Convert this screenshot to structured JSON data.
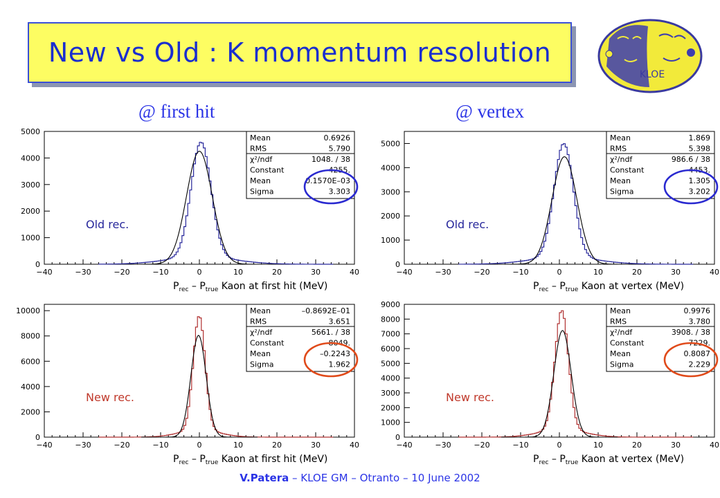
{
  "slide": {
    "title": "New vs Old : K momentum resolution",
    "col_left": "@ first hit",
    "col_right": "@ vertex",
    "footer_author": "V.Patera",
    "footer_rest": " – KLOE GM – Otranto – 10 June 2002",
    "logo_text": "KLOE",
    "colors": {
      "title_bg": "#fdfd62",
      "title_fg": "#1a2ecf",
      "old": "#27279b",
      "new": "#c0392b",
      "fit": "#000000"
    }
  },
  "chart_data": [
    {
      "type": "line",
      "label": "Old rec.",
      "label_color": "#27279b",
      "hist_color": "#27279b",
      "circle_color": "#2a2ad0",
      "xlabel_main": "P",
      "xlabel_sub1": "rec",
      "xlabel_mid": " – P",
      "xlabel_sub2": "true",
      "xlabel_tail": " Kaon at first hit (MeV)",
      "xlim": [
        -40,
        40
      ],
      "ylim": [
        0,
        5000
      ],
      "xticks": [
        "-40",
        "-30",
        "-20",
        "-10",
        "0",
        "10",
        "20",
        "30",
        "40"
      ],
      "yticks": [
        "0",
        "1000",
        "2000",
        "3000",
        "4000",
        "5000"
      ],
      "peak": 4600,
      "fit_mean": 0.000157,
      "fit_sigma": 3.303,
      "fit_constant": 4255,
      "hist_mean": 0.6926,
      "stats": [
        [
          "Mean",
          "0.6926"
        ],
        [
          "RMS",
          "5.790"
        ],
        [
          "χ²/ndf",
          "1048.  /  38"
        ],
        [
          "Constant",
          "4255."
        ],
        [
          "Mean",
          "0.1570E–03"
        ],
        [
          "Sigma",
          "3.303"
        ]
      ]
    },
    {
      "type": "line",
      "label": "Old rec.",
      "label_color": "#27279b",
      "hist_color": "#27279b",
      "circle_color": "#2a2ad0",
      "xlabel_main": "P",
      "xlabel_sub1": "rec",
      "xlabel_mid": " – P",
      "xlabel_sub2": "true",
      "xlabel_tail": " Kaon at vertex (MeV)",
      "xlim": [
        -40,
        40
      ],
      "ylim": [
        0,
        5500
      ],
      "xticks": [
        "-40",
        "-30",
        "-20",
        "-10",
        "0",
        "10",
        "20",
        "30",
        "40"
      ],
      "yticks": [
        "0",
        "1000",
        "2000",
        "3000",
        "4000",
        "5000"
      ],
      "peak": 5000,
      "fit_mean": 1.305,
      "fit_sigma": 3.202,
      "fit_constant": 4453,
      "hist_mean": 1.869,
      "stats": [
        [
          "Mean",
          "1.869"
        ],
        [
          "RMS",
          "5.398"
        ],
        [
          "χ²/ndf",
          "986.6  /  38"
        ],
        [
          "Constant",
          "4453."
        ],
        [
          "Mean",
          "1.305"
        ],
        [
          "Sigma",
          "3.202"
        ]
      ]
    },
    {
      "type": "line",
      "label": "New rec.",
      "label_color": "#c0392b",
      "hist_color": "#b03030",
      "circle_color": "#e04a1a",
      "xlabel_main": "P",
      "xlabel_sub1": "rec",
      "xlabel_mid": " – P",
      "xlabel_sub2": "true",
      "xlabel_tail": " Kaon at first hit (MeV)",
      "xlim": [
        -40,
        40
      ],
      "ylim": [
        0,
        10500
      ],
      "xticks": [
        "-40",
        "-30",
        "-20",
        "-10",
        "0",
        "10",
        "20",
        "30",
        "40"
      ],
      "yticks": [
        "0",
        "2000",
        "4000",
        "6000",
        "8000",
        "10000"
      ],
      "peak": 9600,
      "fit_mean": -0.2243,
      "fit_sigma": 1.962,
      "fit_constant": 8049,
      "hist_mean": -0.08692,
      "stats": [
        [
          "Mean",
          "–0.8692E–01"
        ],
        [
          "RMS",
          "3.651"
        ],
        [
          "χ²/ndf",
          "5661.  /  38"
        ],
        [
          "Constant",
          "8049."
        ],
        [
          "Mean",
          "–0.2243"
        ],
        [
          "Sigma",
          "1.962"
        ]
      ]
    },
    {
      "type": "line",
      "label": "New rec.",
      "label_color": "#c0392b",
      "hist_color": "#b03030",
      "circle_color": "#e04a1a",
      "xlabel_main": "P",
      "xlabel_sub1": "rec",
      "xlabel_mid": " – P",
      "xlabel_sub2": "true",
      "xlabel_tail": " Kaon at vertex (MeV)",
      "xlim": [
        -40,
        40
      ],
      "ylim": [
        0,
        9000
      ],
      "xticks": [
        "-40",
        "-30",
        "-20",
        "-10",
        "0",
        "10",
        "20",
        "30",
        "40"
      ],
      "yticks": [
        "0",
        "1000",
        "2000",
        "3000",
        "4000",
        "5000",
        "6000",
        "7000",
        "8000",
        "9000"
      ],
      "peak": 8600,
      "fit_mean": 0.8087,
      "fit_sigma": 2.229,
      "fit_constant": 7229,
      "hist_mean": 0.9976,
      "stats": [
        [
          "Mean",
          "0.9976"
        ],
        [
          "RMS",
          "3.780"
        ],
        [
          "χ²/ndf",
          "3908.  /  38"
        ],
        [
          "Constant",
          "7229."
        ],
        [
          "Mean",
          "0.8087"
        ],
        [
          "Sigma",
          "2.229"
        ]
      ]
    }
  ]
}
